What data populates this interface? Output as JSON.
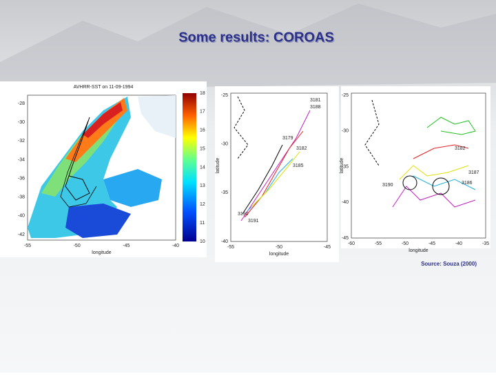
{
  "title": "Some results: COROAS",
  "source": "Source: Souza (2000)",
  "panels": [
    {
      "title": "AVHRR-SST on 11-09-1994",
      "yticks": [
        "-28",
        "-30",
        "-32",
        "-34",
        "-36",
        "-38",
        "-40",
        "-42"
      ],
      "xticks": [
        "-55",
        "-50",
        "-45",
        "-40"
      ],
      "xlabel": "longitude",
      "colorbar": [
        "10",
        "11",
        "12",
        "13",
        "14",
        "15",
        "16",
        "17",
        "18"
      ]
    },
    {
      "yticks": [
        "-25",
        "-30",
        "-35",
        "-40"
      ],
      "xticks": [
        "-55",
        "-50",
        "-45"
      ],
      "xlabel": "longitude",
      "ylabel": "latitude",
      "ids": [
        "3181",
        "3188",
        "3179",
        "3182",
        "3185",
        "3190",
        "3191"
      ]
    },
    {
      "yticks": [
        "-25",
        "-30",
        "-35",
        "-40",
        "-45"
      ],
      "xticks": [
        "-60",
        "-55",
        "-50",
        "-45",
        "-40",
        "-35"
      ],
      "xlabel": "longitude",
      "ylabel": "latitude",
      "ids": [
        "3182",
        "3187",
        "3186",
        "3190"
      ]
    }
  ]
}
